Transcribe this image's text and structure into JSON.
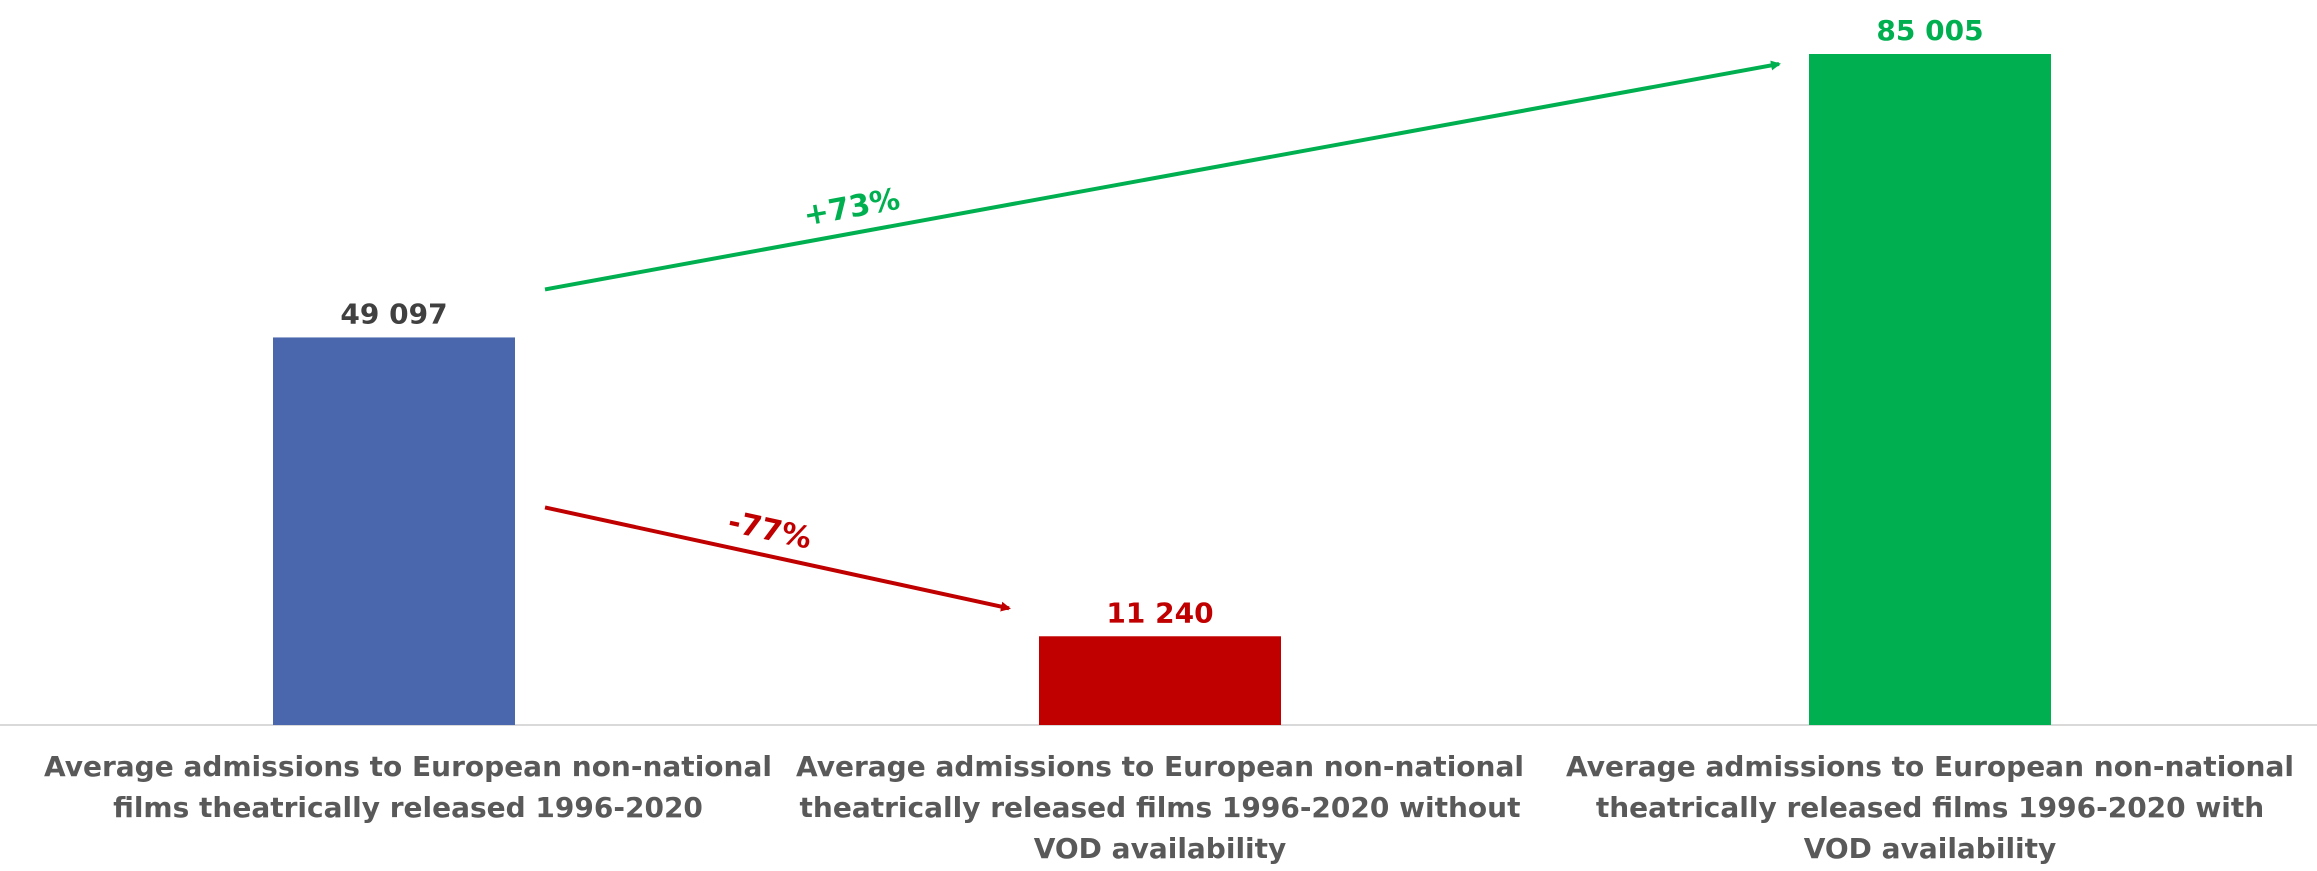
{
  "chart_data": {
    "type": "bar",
    "categories": [
      "Average admissions to European non-national films theatrically released 1996-2020",
      "Average admissions to European non-national theatrically released films 1996-2020 without VOD availability",
      "Average admissions to European non-national theatrically released films 1996-2020 with VOD availability"
    ],
    "values": [
      49097,
      11240,
      85005
    ],
    "value_labels": [
      "49 097",
      "11 240",
      "85 005"
    ],
    "bar_colors": [
      "#4a66ac",
      "#c00000",
      "#00b050"
    ],
    "value_label_colors": [
      "#404040",
      "#c00000",
      "#00b050"
    ],
    "ylim": [
      0,
      85005
    ],
    "grid": false,
    "legend": "none",
    "annotations": [
      {
        "text": "-77%",
        "color": "#c00000",
        "from": 0,
        "to": 1
      },
      {
        "text": "+73%",
        "color": "#00b050",
        "from": 0,
        "to": 2
      }
    ]
  }
}
